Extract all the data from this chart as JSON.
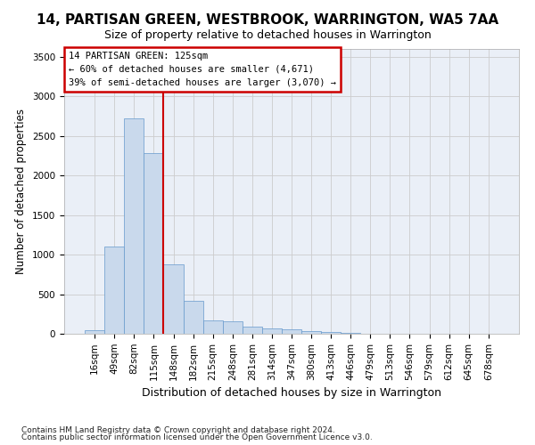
{
  "title": "14, PARTISAN GREEN, WESTBROOK, WARRINGTON, WA5 7AA",
  "subtitle": "Size of property relative to detached houses in Warrington",
  "xlabel": "Distribution of detached houses by size in Warrington",
  "ylabel": "Number of detached properties",
  "footnote1": "Contains HM Land Registry data © Crown copyright and database right 2024.",
  "footnote2": "Contains public sector information licensed under the Open Government Licence v3.0.",
  "categories": [
    "16sqm",
    "49sqm",
    "82sqm",
    "115sqm",
    "148sqm",
    "182sqm",
    "215sqm",
    "248sqm",
    "281sqm",
    "314sqm",
    "347sqm",
    "380sqm",
    "413sqm",
    "446sqm",
    "479sqm",
    "513sqm",
    "546sqm",
    "579sqm",
    "612sqm",
    "645sqm",
    "678sqm"
  ],
  "values": [
    50,
    1100,
    2720,
    2280,
    880,
    420,
    170,
    160,
    95,
    65,
    55,
    30,
    25,
    15,
    5,
    2,
    1,
    0,
    0,
    0,
    0
  ],
  "bar_color": "#c9d9ec",
  "bar_edge_color": "#6699cc",
  "grid_color": "#cccccc",
  "bg_color": "#eaeff7",
  "annotation_line1": "14 PARTISAN GREEN: 125sqm",
  "annotation_line2": "← 60% of detached houses are smaller (4,671)",
  "annotation_line3": "39% of semi-detached houses are larger (3,070) →",
  "annotation_box_facecolor": "#ffffff",
  "annotation_box_edgecolor": "#cc0000",
  "vline_index": 3,
  "vline_color": "#cc0000",
  "ylim": [
    0,
    3600
  ],
  "yticks": [
    0,
    500,
    1000,
    1500,
    2000,
    2500,
    3000,
    3500
  ],
  "title_fontsize": 11,
  "subtitle_fontsize": 9,
  "ylabel_fontsize": 8.5,
  "xlabel_fontsize": 9,
  "tick_fontsize": 7.5,
  "footnote_fontsize": 6.5
}
